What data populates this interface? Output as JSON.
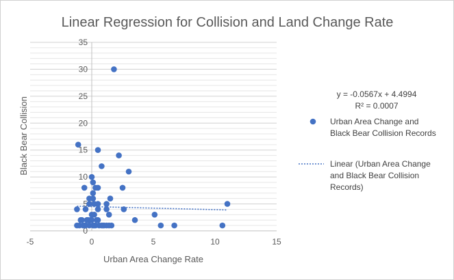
{
  "chart_data": {
    "type": "scatter",
    "title": "Linear Regression for Collision and Land Change Rate",
    "xlabel": "Urban Area Change Rate",
    "ylabel": "Black Bear Collision",
    "xlim": [
      -5,
      15
    ],
    "ylim": [
      0,
      35
    ],
    "x_ticks": [
      "-5",
      "0",
      "5",
      "10",
      "15"
    ],
    "y_ticks": [
      "0",
      "5",
      "10",
      "15",
      "20",
      "25",
      "30",
      "35"
    ],
    "gridlines": "horizontal minor",
    "marker_color": "#4472c4",
    "series": [
      {
        "name": "Urban Area Change and Black Bear Collision Records",
        "points": [
          [
            -1.2,
            1
          ],
          [
            -1.0,
            1
          ],
          [
            -0.8,
            2
          ],
          [
            -0.6,
            1
          ],
          [
            -0.4,
            2
          ],
          [
            -0.2,
            1
          ],
          [
            0.0,
            2
          ],
          [
            0.2,
            1
          ],
          [
            0.4,
            2
          ],
          [
            0.6,
            1
          ],
          [
            0.8,
            1
          ],
          [
            1.0,
            1
          ],
          [
            1.2,
            1
          ],
          [
            1.4,
            1
          ],
          [
            1.6,
            1
          ],
          [
            -0.5,
            1
          ],
          [
            -0.3,
            2
          ],
          [
            0.1,
            1
          ],
          [
            0.3,
            1
          ],
          [
            0.5,
            2
          ],
          [
            -0.1,
            2
          ],
          [
            0.9,
            1
          ],
          [
            -0.9,
            2
          ],
          [
            -0.7,
            1
          ],
          [
            0.0,
            3
          ],
          [
            0.2,
            3
          ],
          [
            0.5,
            4
          ],
          [
            1.2,
            4
          ],
          [
            1.4,
            3
          ],
          [
            2.6,
            4
          ],
          [
            -1.2,
            4
          ],
          [
            -0.5,
            4
          ],
          [
            0.2,
            5
          ],
          [
            0.5,
            5
          ],
          [
            1.2,
            5
          ],
          [
            -0.2,
            5
          ],
          [
            -0.2,
            6
          ],
          [
            0.1,
            6
          ],
          [
            1.5,
            6
          ],
          [
            0.1,
            7
          ],
          [
            0.3,
            8
          ],
          [
            0.5,
            8
          ],
          [
            -0.6,
            8
          ],
          [
            2.5,
            8
          ],
          [
            0.1,
            9
          ],
          [
            0.0,
            10
          ],
          [
            3.0,
            11
          ],
          [
            0.8,
            12
          ],
          [
            2.2,
            14
          ],
          [
            0.5,
            15
          ],
          [
            -1.1,
            16
          ],
          [
            1.8,
            30
          ],
          [
            3.5,
            2
          ],
          [
            5.1,
            3
          ],
          [
            5.6,
            1
          ],
          [
            6.7,
            1
          ],
          [
            10.6,
            1
          ],
          [
            11.0,
            5
          ]
        ]
      }
    ],
    "trendline": {
      "name": "Linear (Urban Area Change and Black Bear Collision Records)",
      "type": "linear",
      "slope": -0.0567,
      "intercept": 4.4994,
      "x_range": [
        -1.2,
        11
      ],
      "color": "#4472c4",
      "style": "dotted"
    },
    "equation_label": "y = -0.0567x + 4.4994",
    "r2_label": "R² = 0.0007",
    "legend": {
      "position": "right",
      "marker_entry": [
        "Urban Area Change and",
        "Black Bear Collision Records"
      ],
      "line_entry": [
        "Linear (Urban Area Change",
        "and Black Bear Collision",
        "Records)"
      ]
    }
  }
}
